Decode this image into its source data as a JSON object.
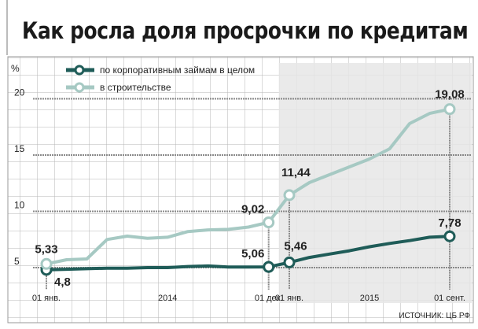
{
  "chart_data": {
    "type": "line",
    "title": "Как росла доля просрочки по кредитам",
    "ylabel": "%",
    "ylim": [
      2.4,
      22
    ],
    "yticks": [
      5,
      10,
      15,
      20
    ],
    "x": [
      "2014-01",
      "2014-02",
      "2014-03",
      "2014-04",
      "2014-05",
      "2014-06",
      "2014-07",
      "2014-08",
      "2014-09",
      "2014-10",
      "2014-11",
      "2014-12",
      "2015-01",
      "2015-02",
      "2015-03",
      "2015-04",
      "2015-05",
      "2015-06",
      "2015-07",
      "2015-08",
      "2015-09"
    ],
    "xtick_labels": [
      {
        "x": "2014-01",
        "label": "01 янв."
      },
      {
        "x": "2014-07",
        "label": "2014"
      },
      {
        "x": "2014-12",
        "label": "01 дек."
      },
      {
        "x": "2015-01",
        "label": "01 янв."
      },
      {
        "x": "2015-05",
        "label": "2015"
      },
      {
        "x": "2015-09",
        "label": "01 сент."
      }
    ],
    "series": [
      {
        "name": "по корпоративным займам в целом",
        "color": "#1f5c58",
        "values": [
          4.8,
          4.85,
          4.9,
          4.95,
          4.95,
          5.0,
          5.0,
          5.1,
          5.15,
          5.05,
          5.05,
          5.06,
          5.46,
          5.9,
          6.2,
          6.5,
          6.85,
          7.15,
          7.4,
          7.7,
          7.78
        ]
      },
      {
        "name": "в строительстве",
        "color": "#a6c9c3",
        "values": [
          5.33,
          5.7,
          5.77,
          7.5,
          7.8,
          7.6,
          7.7,
          8.2,
          8.35,
          8.4,
          8.6,
          9.02,
          11.44,
          12.55,
          13.25,
          13.95,
          14.65,
          15.55,
          17.8,
          18.7,
          19.08
        ]
      }
    ],
    "annotations": [
      {
        "series": 0,
        "x": "2014-01",
        "label": "4,8"
      },
      {
        "series": 0,
        "x": "2014-12",
        "label": "5,06"
      },
      {
        "series": 0,
        "x": "2015-01",
        "label": "5,46"
      },
      {
        "series": 0,
        "x": "2015-09",
        "label": "7,78"
      },
      {
        "series": 1,
        "x": "2014-01",
        "label": "5,33"
      },
      {
        "series": 1,
        "x": "2014-12",
        "label": "9,02"
      },
      {
        "series": 1,
        "x": "2015-01",
        "label": "11,44"
      },
      {
        "series": 1,
        "x": "2015-09",
        "label": "19,08"
      }
    ],
    "shaded_period": [
      "2014-12",
      "2015-09"
    ],
    "grid": true,
    "legend": "top-left",
    "source": "ИСТОЧНИК: ЦБ РФ"
  }
}
